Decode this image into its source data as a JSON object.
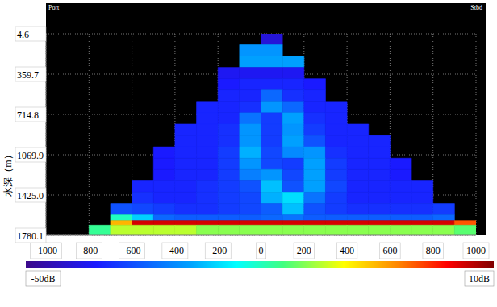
{
  "chart_data": {
    "type": "heatmap",
    "y_label": "水深（m）",
    "annotations": [
      "Port",
      "Stbd"
    ],
    "xlim": [
      -1000,
      1000
    ],
    "xticks": [
      -1000,
      -800,
      -600,
      -400,
      -200,
      0,
      200,
      400,
      600,
      800,
      1000
    ],
    "ylim": [
      4.6,
      1780.1
    ],
    "yticks": [
      4.6,
      359.7,
      714.8,
      1069.9,
      {
        "value": 1425,
        "label": "1425.0"
      },
      1780.1
    ],
    "grid": true,
    "colorbar": {
      "range": [
        -50,
        10
      ],
      "ticks": [
        {
          "value": -50,
          "label": "-50dB"
        },
        {
          "value": 10,
          "label": "10dB"
        }
      ]
    },
    "cells": {
      "x_edges": [
        -1000,
        -900,
        -800,
        -700,
        -600,
        -500,
        -400,
        -300,
        -200,
        -100,
        0,
        100,
        200,
        300,
        400,
        500,
        600,
        700,
        800,
        900,
        1000
      ],
      "y_edges": [
        0,
        100,
        200,
        300,
        400,
        500,
        600,
        700,
        800,
        900,
        1000,
        1100,
        1200,
        1300,
        1400,
        1500,
        1600,
        1650,
        1690,
        1800
      ],
      "values": [
        [
          null,
          null,
          null,
          null,
          null,
          null,
          null,
          null,
          null,
          null,
          -44,
          null,
          null,
          null,
          null,
          null,
          null,
          null,
          null,
          null
        ],
        [
          null,
          null,
          null,
          null,
          null,
          null,
          null,
          null,
          null,
          -30,
          -30,
          null,
          null,
          null,
          null,
          null,
          null,
          null,
          null,
          null
        ],
        [
          null,
          null,
          null,
          null,
          null,
          null,
          null,
          null,
          null,
          -29,
          -29,
          -29,
          null,
          null,
          null,
          null,
          null,
          null,
          null,
          null
        ],
        [
          null,
          null,
          null,
          null,
          null,
          null,
          null,
          null,
          -42,
          -42,
          -42,
          -42,
          null,
          null,
          null,
          null,
          null,
          null,
          null,
          null
        ],
        [
          null,
          null,
          null,
          null,
          null,
          null,
          null,
          null,
          -41,
          -40,
          -40,
          -40,
          -41,
          null,
          null,
          null,
          null,
          null,
          null,
          null
        ],
        [
          null,
          null,
          null,
          null,
          null,
          null,
          null,
          null,
          -40,
          -40,
          -34,
          -39,
          -40,
          null,
          null,
          null,
          null,
          null,
          null,
          null
        ],
        [
          null,
          null,
          null,
          null,
          null,
          null,
          null,
          -40,
          -40,
          -39,
          -30,
          -34,
          -40,
          -40,
          null,
          null,
          null,
          null,
          null,
          null
        ],
        [
          null,
          null,
          null,
          null,
          null,
          null,
          null,
          -40,
          -40,
          -33,
          -38,
          -29,
          -39,
          -40,
          null,
          null,
          null,
          null,
          null,
          null
        ],
        [
          null,
          null,
          null,
          null,
          null,
          null,
          -40,
          -40,
          -39,
          -30,
          -38,
          -30,
          -38,
          -40,
          -40,
          null,
          null,
          null,
          null,
          null
        ],
        [
          null,
          null,
          null,
          null,
          null,
          null,
          -40,
          -40,
          -39,
          -30,
          -38,
          -29,
          -36,
          -40,
          -40,
          -40,
          null,
          null,
          null,
          null
        ],
        [
          null,
          null,
          null,
          null,
          null,
          -41,
          -40,
          -40,
          -38,
          -28,
          -37,
          -31,
          -30,
          -39,
          -40,
          -40,
          null,
          null,
          null,
          null
        ],
        [
          null,
          null,
          null,
          null,
          null,
          -41,
          -40,
          -40,
          -38,
          -30,
          -37,
          -38,
          -29,
          -38,
          -40,
          -40,
          -41,
          null,
          null,
          null
        ],
        [
          null,
          null,
          null,
          null,
          null,
          -41,
          -40,
          -40,
          -38,
          -32,
          -30,
          -37,
          -29,
          -38,
          -40,
          -40,
          -41,
          null,
          null,
          null
        ],
        [
          null,
          null,
          null,
          null,
          -40,
          -40,
          -40,
          -39,
          -38,
          -36,
          -27,
          -36,
          -29,
          -37,
          -40,
          -40,
          -40,
          -40,
          null,
          null
        ],
        [
          null,
          null,
          null,
          null,
          -39,
          -40,
          -40,
          -39,
          -38,
          -37,
          -28,
          -25,
          -33,
          -38,
          -40,
          -40,
          -40,
          -40,
          null,
          null
        ],
        [
          null,
          null,
          null,
          -36,
          -37,
          -38,
          -39,
          -39,
          -38,
          -37,
          -35,
          -27,
          -36,
          -38,
          -39,
          -39,
          -39,
          -39,
          -38,
          null
        ],
        [
          null,
          null,
          null,
          -20,
          -26,
          -34,
          -35,
          -35,
          -35,
          -35,
          -34,
          -33,
          -35,
          -35,
          -35,
          -35,
          -35,
          -35,
          -34,
          null
        ],
        [
          null,
          null,
          null,
          -5,
          6,
          6,
          6,
          6,
          6,
          6,
          6,
          6,
          6,
          6,
          6,
          6,
          6,
          6,
          6,
          0
        ],
        [
          null,
          null,
          -18,
          -12,
          -12,
          -12,
          -12,
          -14,
          -14,
          -14,
          -14,
          -14,
          -14,
          -14,
          -14,
          -14,
          -14,
          -14,
          -14,
          -16
        ]
      ]
    }
  }
}
